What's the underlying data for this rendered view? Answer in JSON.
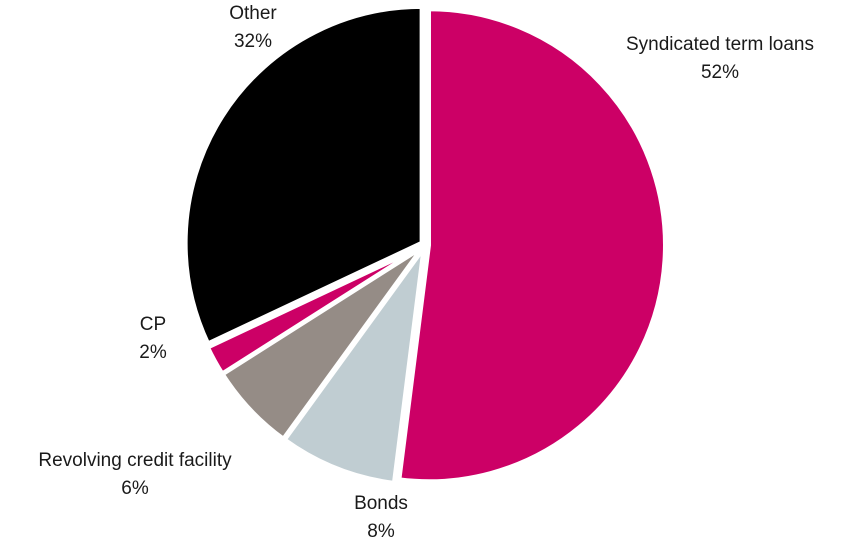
{
  "chart_data": {
    "type": "pie",
    "title": "",
    "slices": [
      {
        "label": "Syndicated term loans",
        "value": 52,
        "value_label": "52%",
        "color": "#CC0066"
      },
      {
        "label": "Bonds",
        "value": 8,
        "value_label": "8%",
        "color": "#C0CDD2"
      },
      {
        "label": "Revolving credit facility",
        "value": 6,
        "value_label": "6%",
        "color": "#958C86"
      },
      {
        "label": "CP",
        "value": 2,
        "value_label": "2%",
        "color": "#CC0066"
      },
      {
        "label": "Other",
        "value": 32,
        "value_label": "32%",
        "color": "#000000"
      }
    ],
    "start_angle": "12 o'clock",
    "direction": "clockwise",
    "legend": "none"
  }
}
